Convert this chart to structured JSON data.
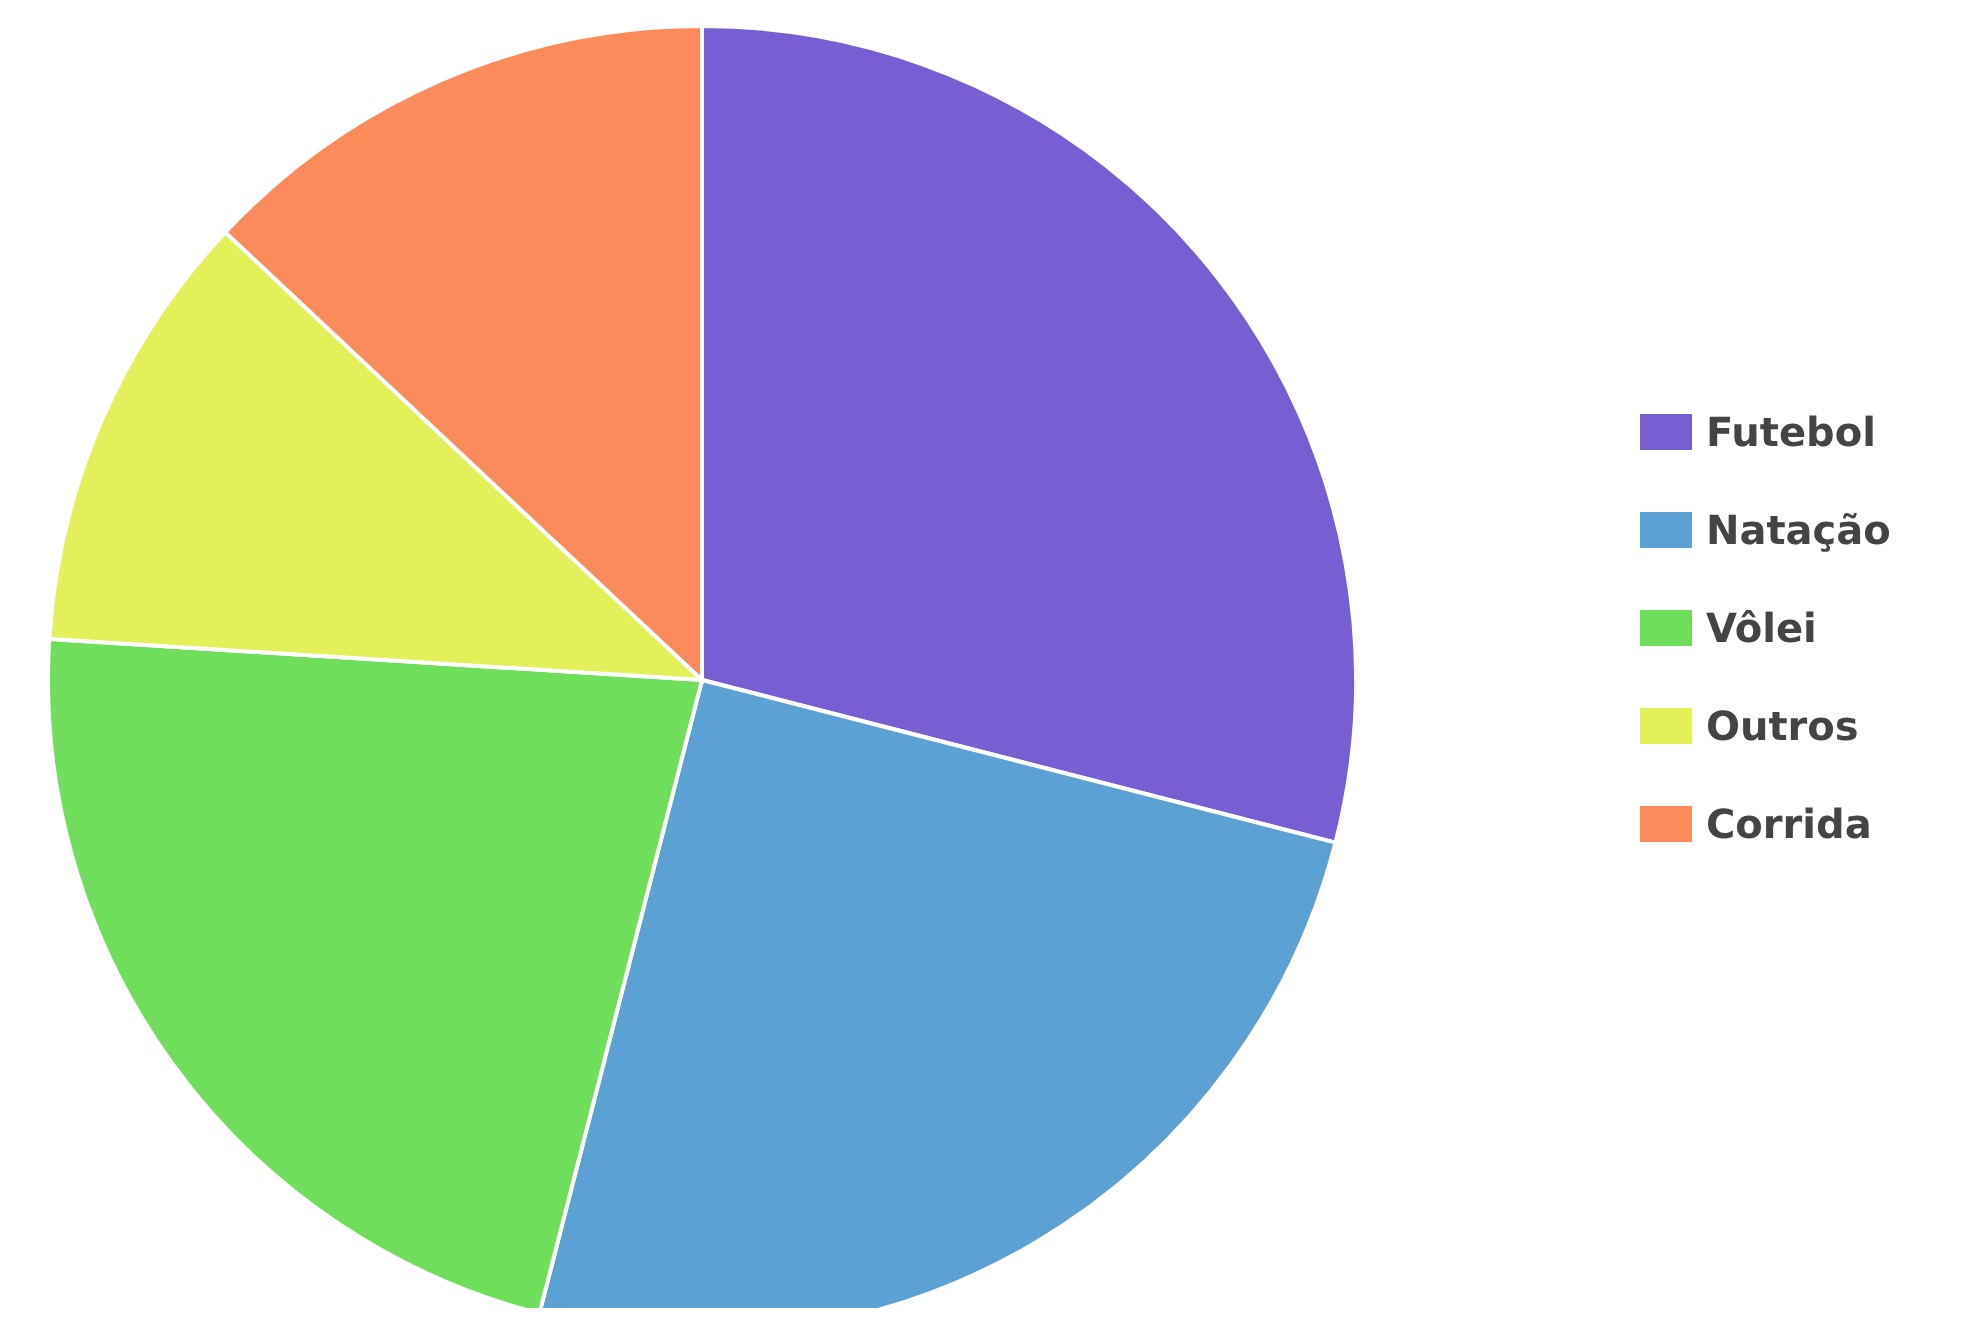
{
  "chart_data": {
    "type": "pie",
    "categories": [
      "Futebol",
      "Natação",
      "Vôlei",
      "Outros",
      "Corrida"
    ],
    "values": [
      29,
      25,
      22,
      11,
      13
    ],
    "colors": [
      "#775ed3",
      "#5ba1d3",
      "#6ede5b",
      "#e4f05a",
      "#fc8a5a"
    ],
    "legend": "right"
  }
}
